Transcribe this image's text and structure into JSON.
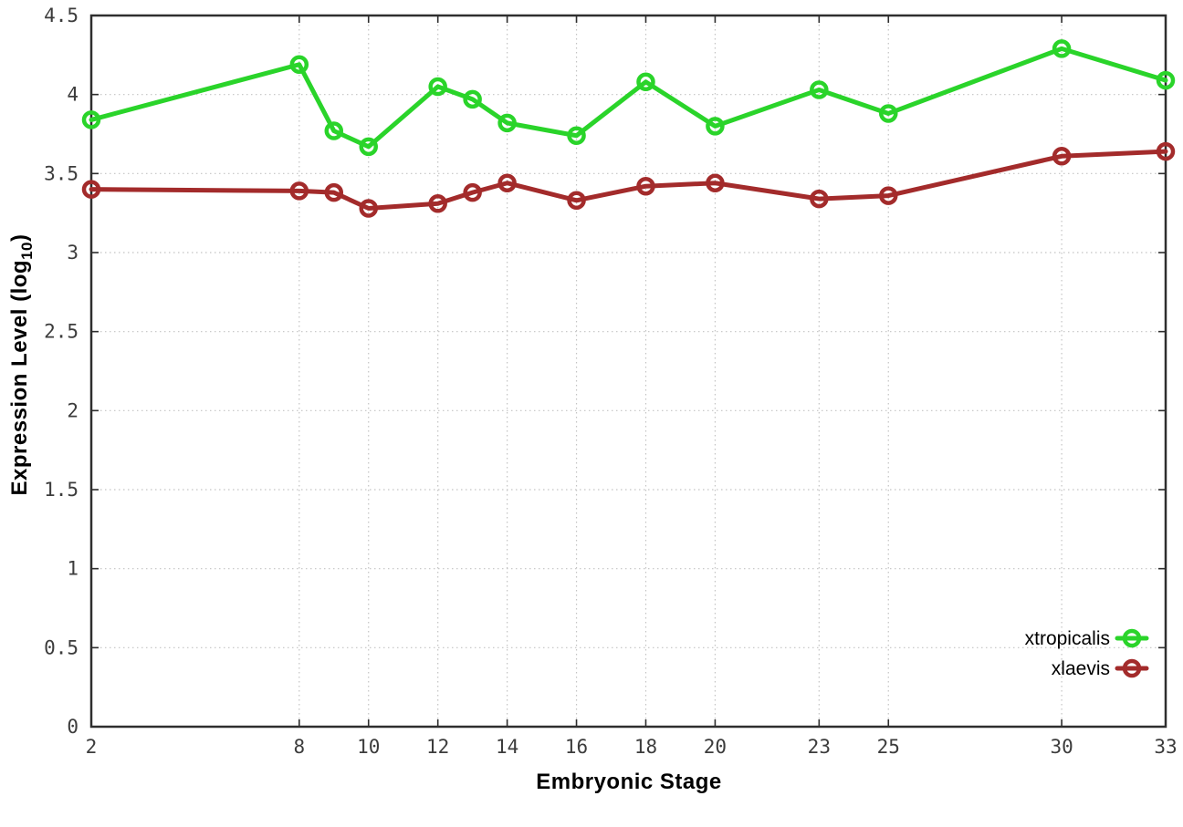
{
  "chart_data": {
    "type": "line",
    "title": "",
    "xlabel": "Embryonic Stage",
    "ylabel": "Expression Level (log10)",
    "ylabel_parts": {
      "main": "Expression Level (log",
      "sub": "10",
      "close": ")"
    },
    "xlim": [
      2,
      33
    ],
    "ylim": [
      0,
      4.5
    ],
    "grid": true,
    "legend_position": "bottom-right",
    "xticks": {
      "values": [
        2,
        8,
        10,
        12,
        14,
        16,
        18,
        20,
        23,
        25,
        30,
        33
      ],
      "labels": [
        "2",
        "8",
        "10",
        "12",
        "14",
        "16",
        "18",
        "20",
        "23",
        "25",
        "30",
        "33"
      ]
    },
    "yticks": {
      "values": [
        0,
        0.5,
        1,
        1.5,
        2,
        2.5,
        3,
        3.5,
        4,
        4.5
      ],
      "labels": [
        "0",
        "0.5",
        "1",
        "1.5",
        "2",
        "2.5",
        "3",
        "3.5",
        "4",
        "4.5"
      ]
    },
    "x": [
      2,
      8,
      9,
      10,
      12,
      13,
      14,
      16,
      18,
      20,
      23,
      25,
      30,
      33
    ],
    "series": [
      {
        "name": "xtropicalis",
        "color": "#2ad42a",
        "values": [
          3.84,
          4.19,
          3.77,
          3.67,
          4.05,
          3.97,
          3.82,
          3.74,
          4.08,
          3.8,
          4.03,
          3.88,
          4.29,
          4.09
        ]
      },
      {
        "name": "xlaevis",
        "color": "#a32b2b",
        "values": [
          3.4,
          3.39,
          3.38,
          3.28,
          3.31,
          3.38,
          3.44,
          3.33,
          3.42,
          3.44,
          3.34,
          3.36,
          3.61,
          3.64
        ]
      }
    ]
  },
  "colors": {
    "axis": "#2e2e2e",
    "grid": "#c3c3c3",
    "tick_text": "#3c3c3c",
    "background": "#ffffff"
  }
}
